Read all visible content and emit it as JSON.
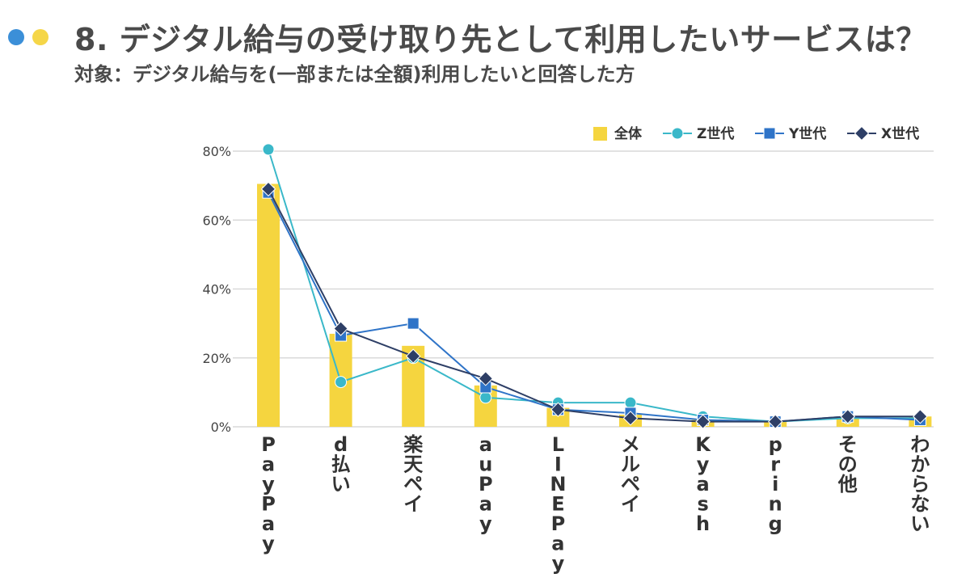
{
  "header": {
    "title": "8. デジタル給与の受け取り先として利用したいサービスは？",
    "subtitle": "対象：デジタル給与を(一部または全額)利用したいと回答した方"
  },
  "colors": {
    "bar": "#f5d53f",
    "z": "#3ab8c9",
    "y": "#2f74c8",
    "x": "#2e3f66",
    "grid": "#d9d9d9",
    "dot_blue": "#3b8fd8",
    "dot_yellow": "#f5d648"
  },
  "chart_data": {
    "type": "bar",
    "categories": [
      "PayPay",
      "d払い",
      "楽天ペイ",
      "auPay",
      "LINEPay",
      "メルペイ",
      "Kyash",
      "pring",
      "その他",
      "わからない"
    ],
    "ylim": [
      0,
      80
    ],
    "yticks": [
      0,
      20,
      40,
      60,
      80
    ],
    "ytick_labels": [
      "0%",
      "20%",
      "40%",
      "60%",
      "80%"
    ],
    "grid": true,
    "legend_position": "top-right",
    "series": [
      {
        "name": "全体",
        "kind": "bar",
        "marker": "square",
        "values": [
          70.5,
          27,
          23.5,
          12,
          5.5,
          3.5,
          2,
          1.5,
          3,
          3
        ]
      },
      {
        "name": "Z世代",
        "kind": "line",
        "marker": "circle",
        "values": [
          80.5,
          13,
          20,
          8.5,
          7,
          7,
          3,
          1.5,
          2.5,
          2.5
        ]
      },
      {
        "name": "Y世代",
        "kind": "line",
        "marker": "square",
        "values": [
          68,
          26.5,
          30,
          11.5,
          5,
          4,
          2,
          1.5,
          3,
          2
        ]
      },
      {
        "name": "X世代",
        "kind": "line",
        "marker": "diamond",
        "values": [
          69,
          28.5,
          20.5,
          14,
          5,
          2.5,
          1.5,
          1.5,
          3,
          3
        ]
      }
    ]
  }
}
